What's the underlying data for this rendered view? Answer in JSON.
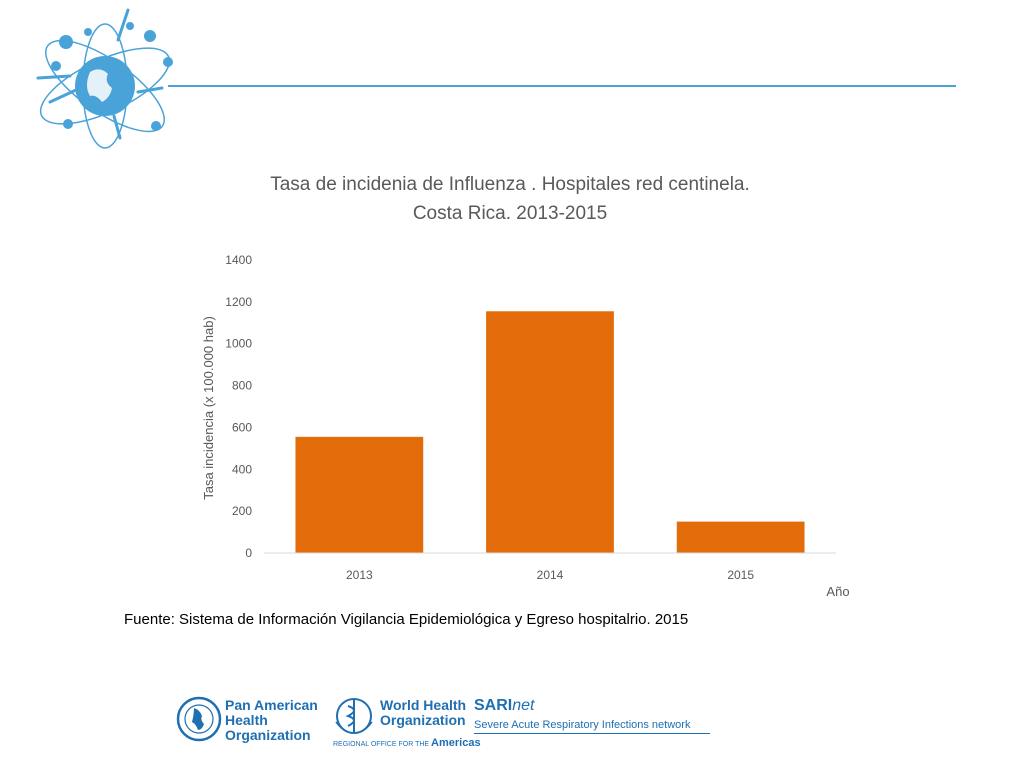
{
  "chart_data": {
    "type": "bar",
    "title_lines": [
      "Tasa de incidenia de Influenza . Hospitales red centinela.",
      "Costa Rica. 2013-2015"
    ],
    "xlabel": "Año",
    "ylabel": "Tasa incidencia (x 100.000 hab)",
    "categories": [
      "2013",
      "2014",
      "2015"
    ],
    "values": [
      555,
      1155,
      150
    ],
    "ylim": [
      0,
      1400
    ],
    "yticks": [
      "0",
      "200",
      "400",
      "600",
      "800",
      "1000",
      "1200",
      "1400"
    ],
    "grid": false,
    "bar_color": "#e36c0a"
  },
  "source_note": "Fuente: Sistema de Información  Vigilancia Epidemiológica y Egreso hospitalrio. 2015",
  "footer": {
    "paho": [
      "Pan American",
      "Health",
      "Organization"
    ],
    "who": [
      "World Health",
      "Organization"
    ],
    "who_sub_prefix": "REGIONAL OFFICE FOR THE",
    "who_sub_region": "Americas",
    "sari_bold": "SARI",
    "sari_italic": "net",
    "sari_full": "Severe Acute Respiratory Infections network"
  },
  "colors": {
    "accent": "#4aa3d8",
    "footer_blue": "#1f6fb2",
    "axis_text": "#595959"
  }
}
